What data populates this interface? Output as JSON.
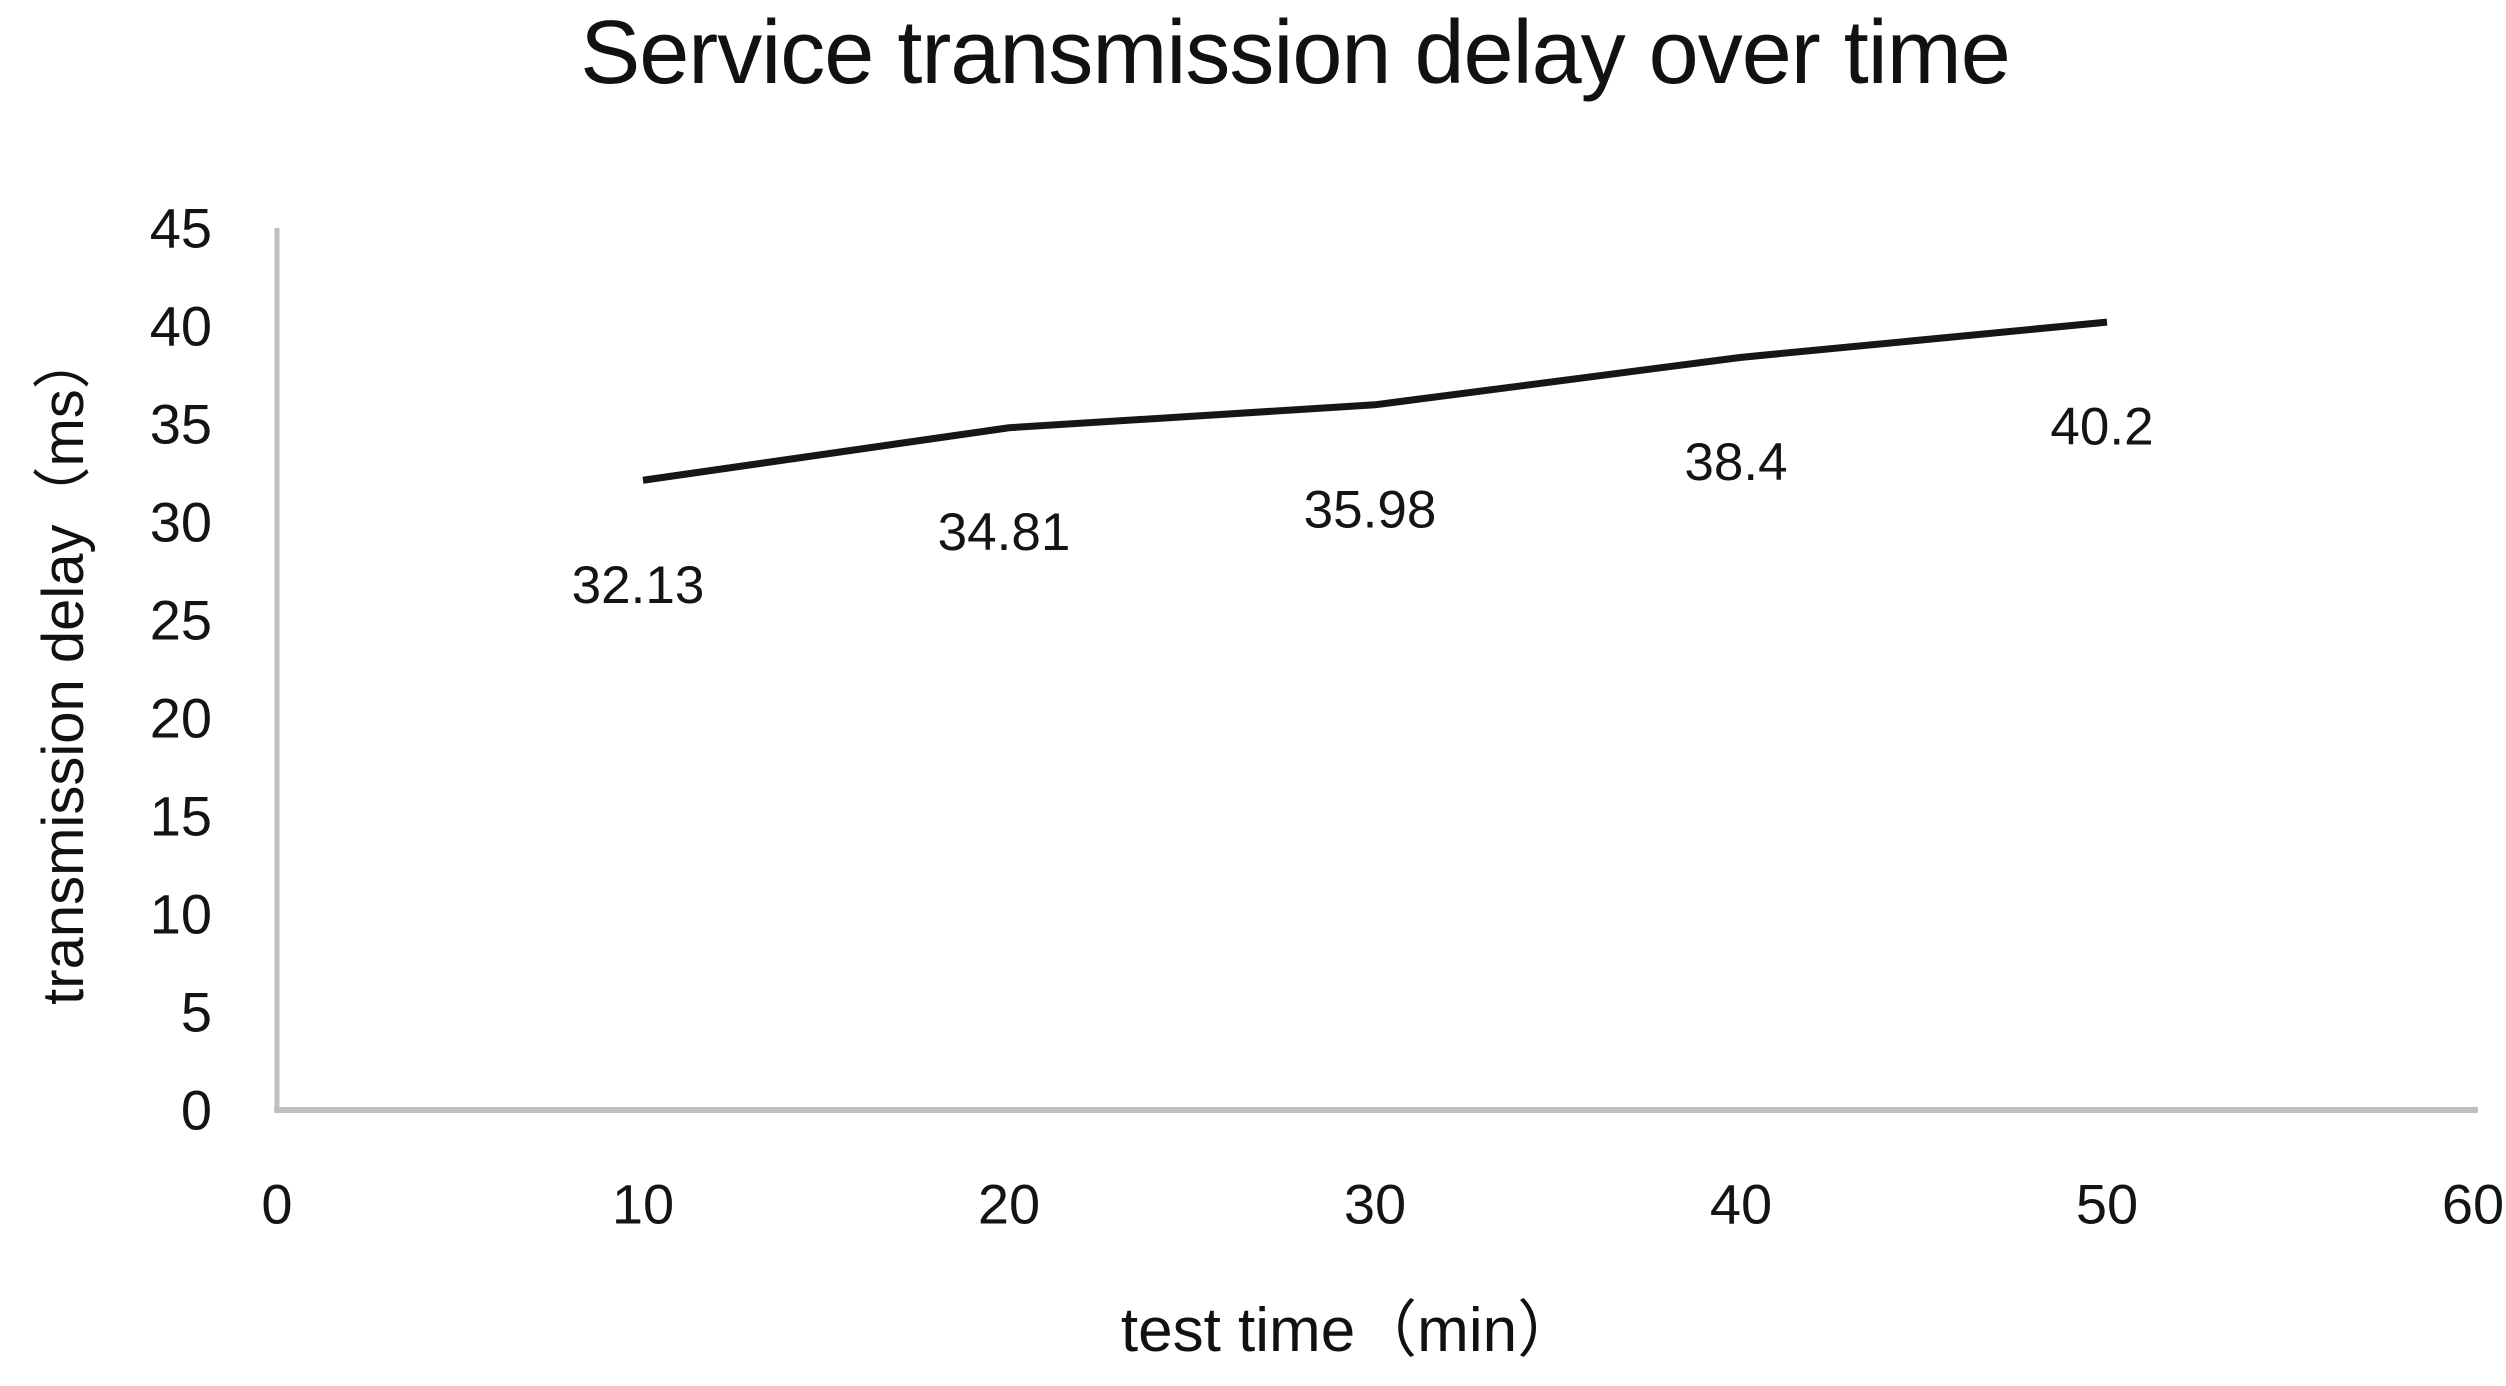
{
  "chart_data": {
    "type": "line",
    "title": "Service transmission delay over time",
    "xlabel": "test time（min）",
    "ylabel": "transmission delay（ms）",
    "x": [
      10,
      20,
      30,
      40,
      50
    ],
    "series": [
      {
        "name": "transmission delay",
        "values": [
          32.13,
          34.81,
          35.98,
          38.4,
          40.2
        ],
        "data_labels": [
          "32.13",
          "34.81",
          "35.98",
          "38.4",
          "40.2"
        ]
      }
    ],
    "xlim": [
      0,
      60
    ],
    "ylim": [
      0,
      45
    ],
    "x_ticks": [
      0,
      10,
      20,
      30,
      40,
      50,
      60
    ],
    "y_ticks": [
      0,
      5,
      10,
      15,
      20,
      25,
      30,
      35,
      40,
      45
    ],
    "grid": false,
    "legend_position": "none",
    "colors": {
      "line": "#161616",
      "axis": "#bfbfbf",
      "text": "#141414",
      "background": "#ffffff"
    }
  }
}
